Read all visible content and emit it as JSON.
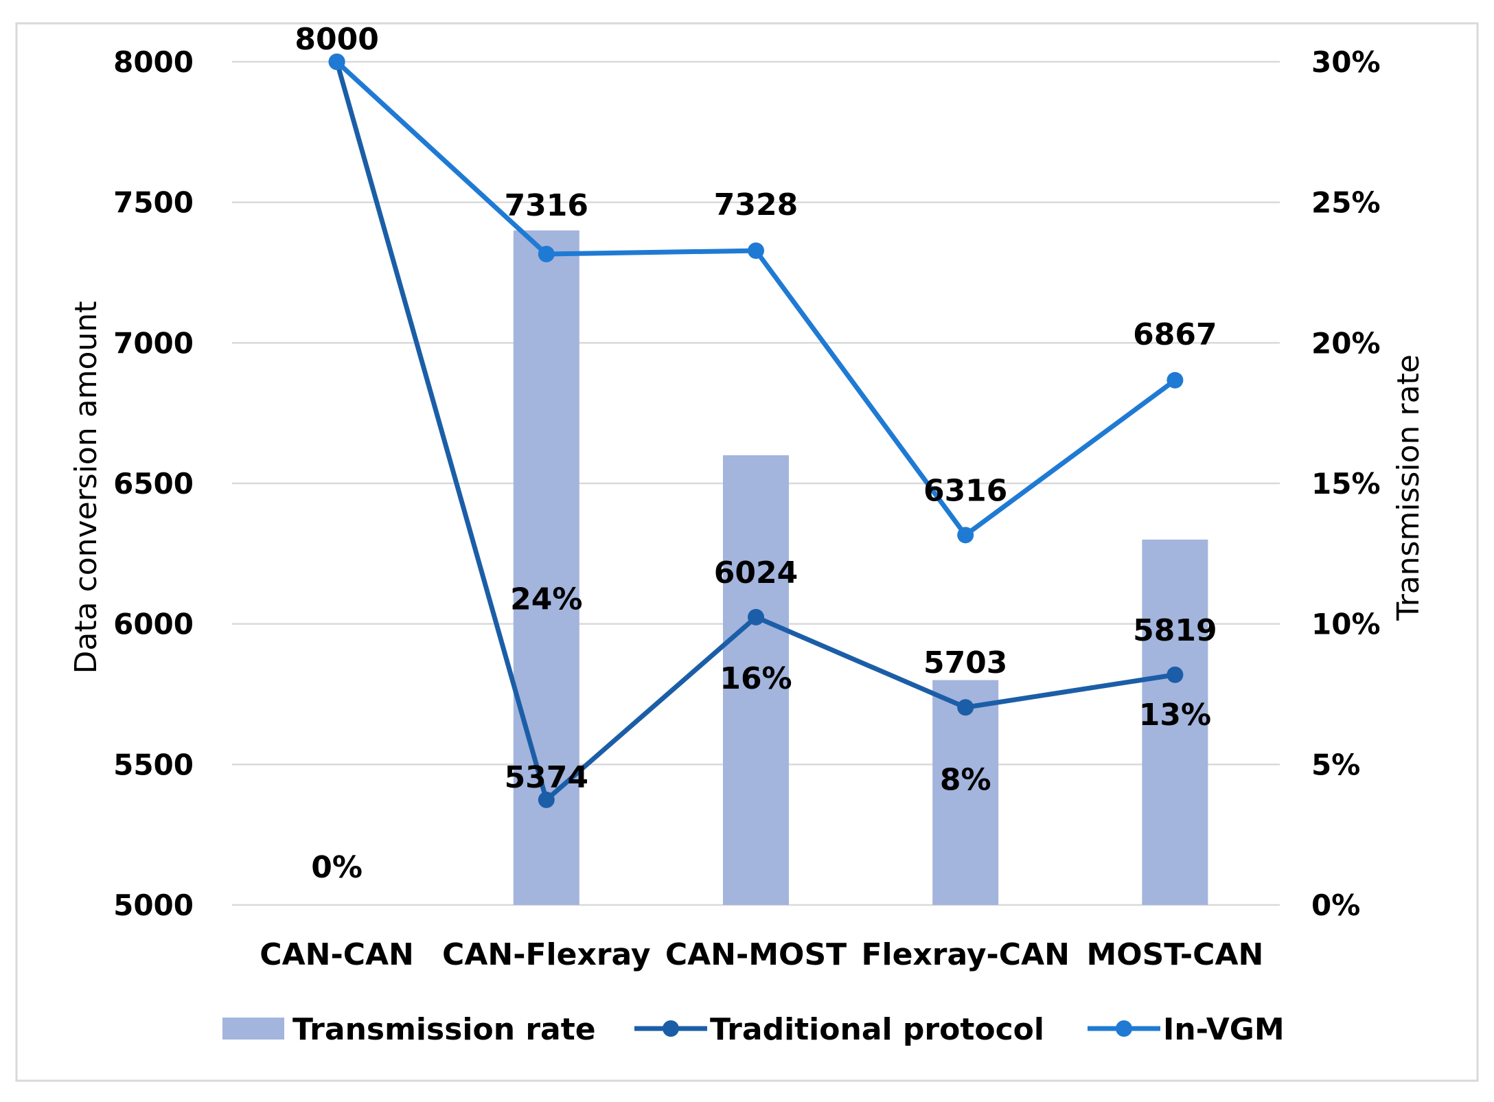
{
  "chart_data": {
    "type": "bar",
    "categories": [
      "CAN-CAN",
      "CAN-Flexray",
      "CAN-MOST",
      "Flexray-CAN",
      "MOST-CAN"
    ],
    "series": [
      {
        "name": "Transmission rate",
        "type": "bar",
        "axis": "right",
        "values": [
          0,
          24,
          16,
          8,
          13
        ],
        "labels": [
          "0%",
          "24%",
          "16%",
          "8%",
          "13%"
        ],
        "color": "#a3b4dd"
      },
      {
        "name": "Traditional protocol",
        "type": "line",
        "axis": "left",
        "values": [
          8000,
          5374,
          6024,
          5703,
          5819
        ],
        "labels": [
          "8000",
          "5374",
          "6024",
          "5703",
          "5819"
        ],
        "color": "#1b5ea7"
      },
      {
        "name": "In-VGM",
        "type": "line",
        "axis": "left",
        "values": [
          8000,
          7316,
          7328,
          6316,
          6867
        ],
        "labels": [
          "8000",
          "7316",
          "7328",
          "6316",
          "6867"
        ],
        "color": "#1f7ad4"
      }
    ],
    "ylabel": "Data conversion amount",
    "y2label": "Transmission rate",
    "ylim": [
      5000,
      8000
    ],
    "y2lim": [
      0,
      30
    ],
    "yticks": [
      "5000",
      "5500",
      "6000",
      "6500",
      "7000",
      "7500",
      "8000"
    ],
    "y2ticks": [
      "0%",
      "5%",
      "10%",
      "15%",
      "20%",
      "25%",
      "30%"
    ],
    "grid": true,
    "legend": "bottom"
  }
}
